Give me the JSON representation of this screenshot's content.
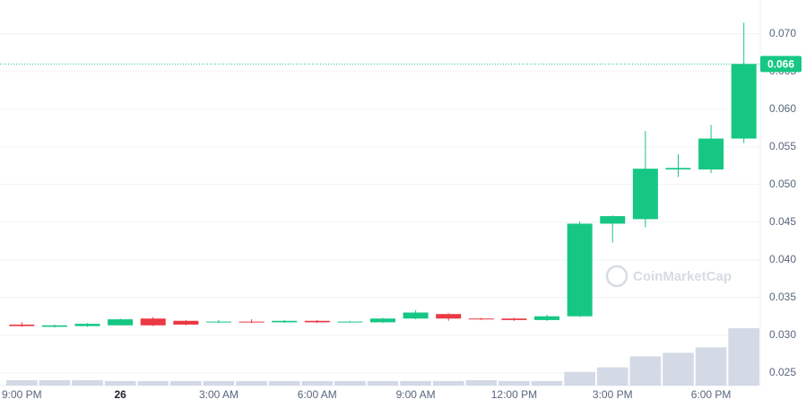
{
  "chart_data": {
    "type": "candlestick",
    "categories": [
      "9:00 PM",
      null,
      null,
      "26",
      null,
      null,
      "3:00 AM",
      null,
      null,
      "6:00 AM",
      null,
      null,
      "9:00 AM",
      null,
      null,
      "12:00 PM",
      null,
      null,
      "3:00 PM",
      null,
      null,
      "6:00 PM",
      null
    ],
    "open": [
      0.0314,
      0.0311,
      0.0312,
      0.0313,
      0.0322,
      0.0319,
      0.0317,
      0.0318,
      0.0317,
      0.0319,
      0.0317,
      0.0317,
      0.0322,
      0.0328,
      0.0322,
      0.0322,
      0.032,
      0.0325,
      0.0448,
      0.0454,
      0.052,
      0.052,
      0.0561
    ],
    "high": [
      0.0317,
      0.0314,
      0.0316,
      0.0322,
      0.0324,
      0.032,
      0.032,
      0.0321,
      0.032,
      0.032,
      0.0319,
      0.0323,
      0.0333,
      0.0329,
      0.0323,
      0.0323,
      0.0327,
      0.0451,
      0.0459,
      0.0571,
      0.054,
      0.0579,
      0.0715
    ],
    "low": [
      0.0311,
      0.031,
      0.0311,
      0.0313,
      0.0312,
      0.0313,
      0.0316,
      0.0316,
      0.0316,
      0.0316,
      0.0317,
      0.0316,
      0.0321,
      0.0319,
      0.032,
      0.0319,
      0.0319,
      0.0324,
      0.0423,
      0.0443,
      0.051,
      0.0515,
      0.0555
    ],
    "close": [
      0.0312,
      0.0313,
      0.0315,
      0.0321,
      0.0313,
      0.0314,
      0.0318,
      0.0317,
      0.0319,
      0.0317,
      0.0318,
      0.0322,
      0.033,
      0.0322,
      0.0321,
      0.032,
      0.0325,
      0.0448,
      0.0458,
      0.0521,
      0.0522,
      0.0561,
      0.066
    ],
    "volumes": [
      6,
      6,
      6,
      5,
      5,
      5,
      5,
      5,
      5,
      5,
      5,
      5,
      5,
      5,
      6,
      5,
      5,
      15,
      20,
      32,
      36,
      42,
      63
    ],
    "up_color": "#16c784",
    "down_color": "#ea3943",
    "volume_color": "#d3d9e5",
    "ylim": [
      0.0233,
      0.0745
    ],
    "yticks": [
      {
        "value": 0.025,
        "label": "0.025"
      },
      {
        "value": 0.03,
        "label": "0.030"
      },
      {
        "value": 0.035,
        "label": "0.035"
      },
      {
        "value": 0.04,
        "label": "0.040"
      },
      {
        "value": 0.045,
        "label": "0.045"
      },
      {
        "value": 0.05,
        "label": "0.050"
      },
      {
        "value": 0.055,
        "label": "0.055"
      },
      {
        "value": 0.06,
        "label": "0.060"
      },
      {
        "value": 0.065,
        "label": "0.065"
      },
      {
        "value": 0.07,
        "label": "0.070"
      }
    ],
    "last_price": {
      "value": 0.066,
      "label": "0.066"
    },
    "watermark": "CoinMarketCap",
    "grid": true
  }
}
